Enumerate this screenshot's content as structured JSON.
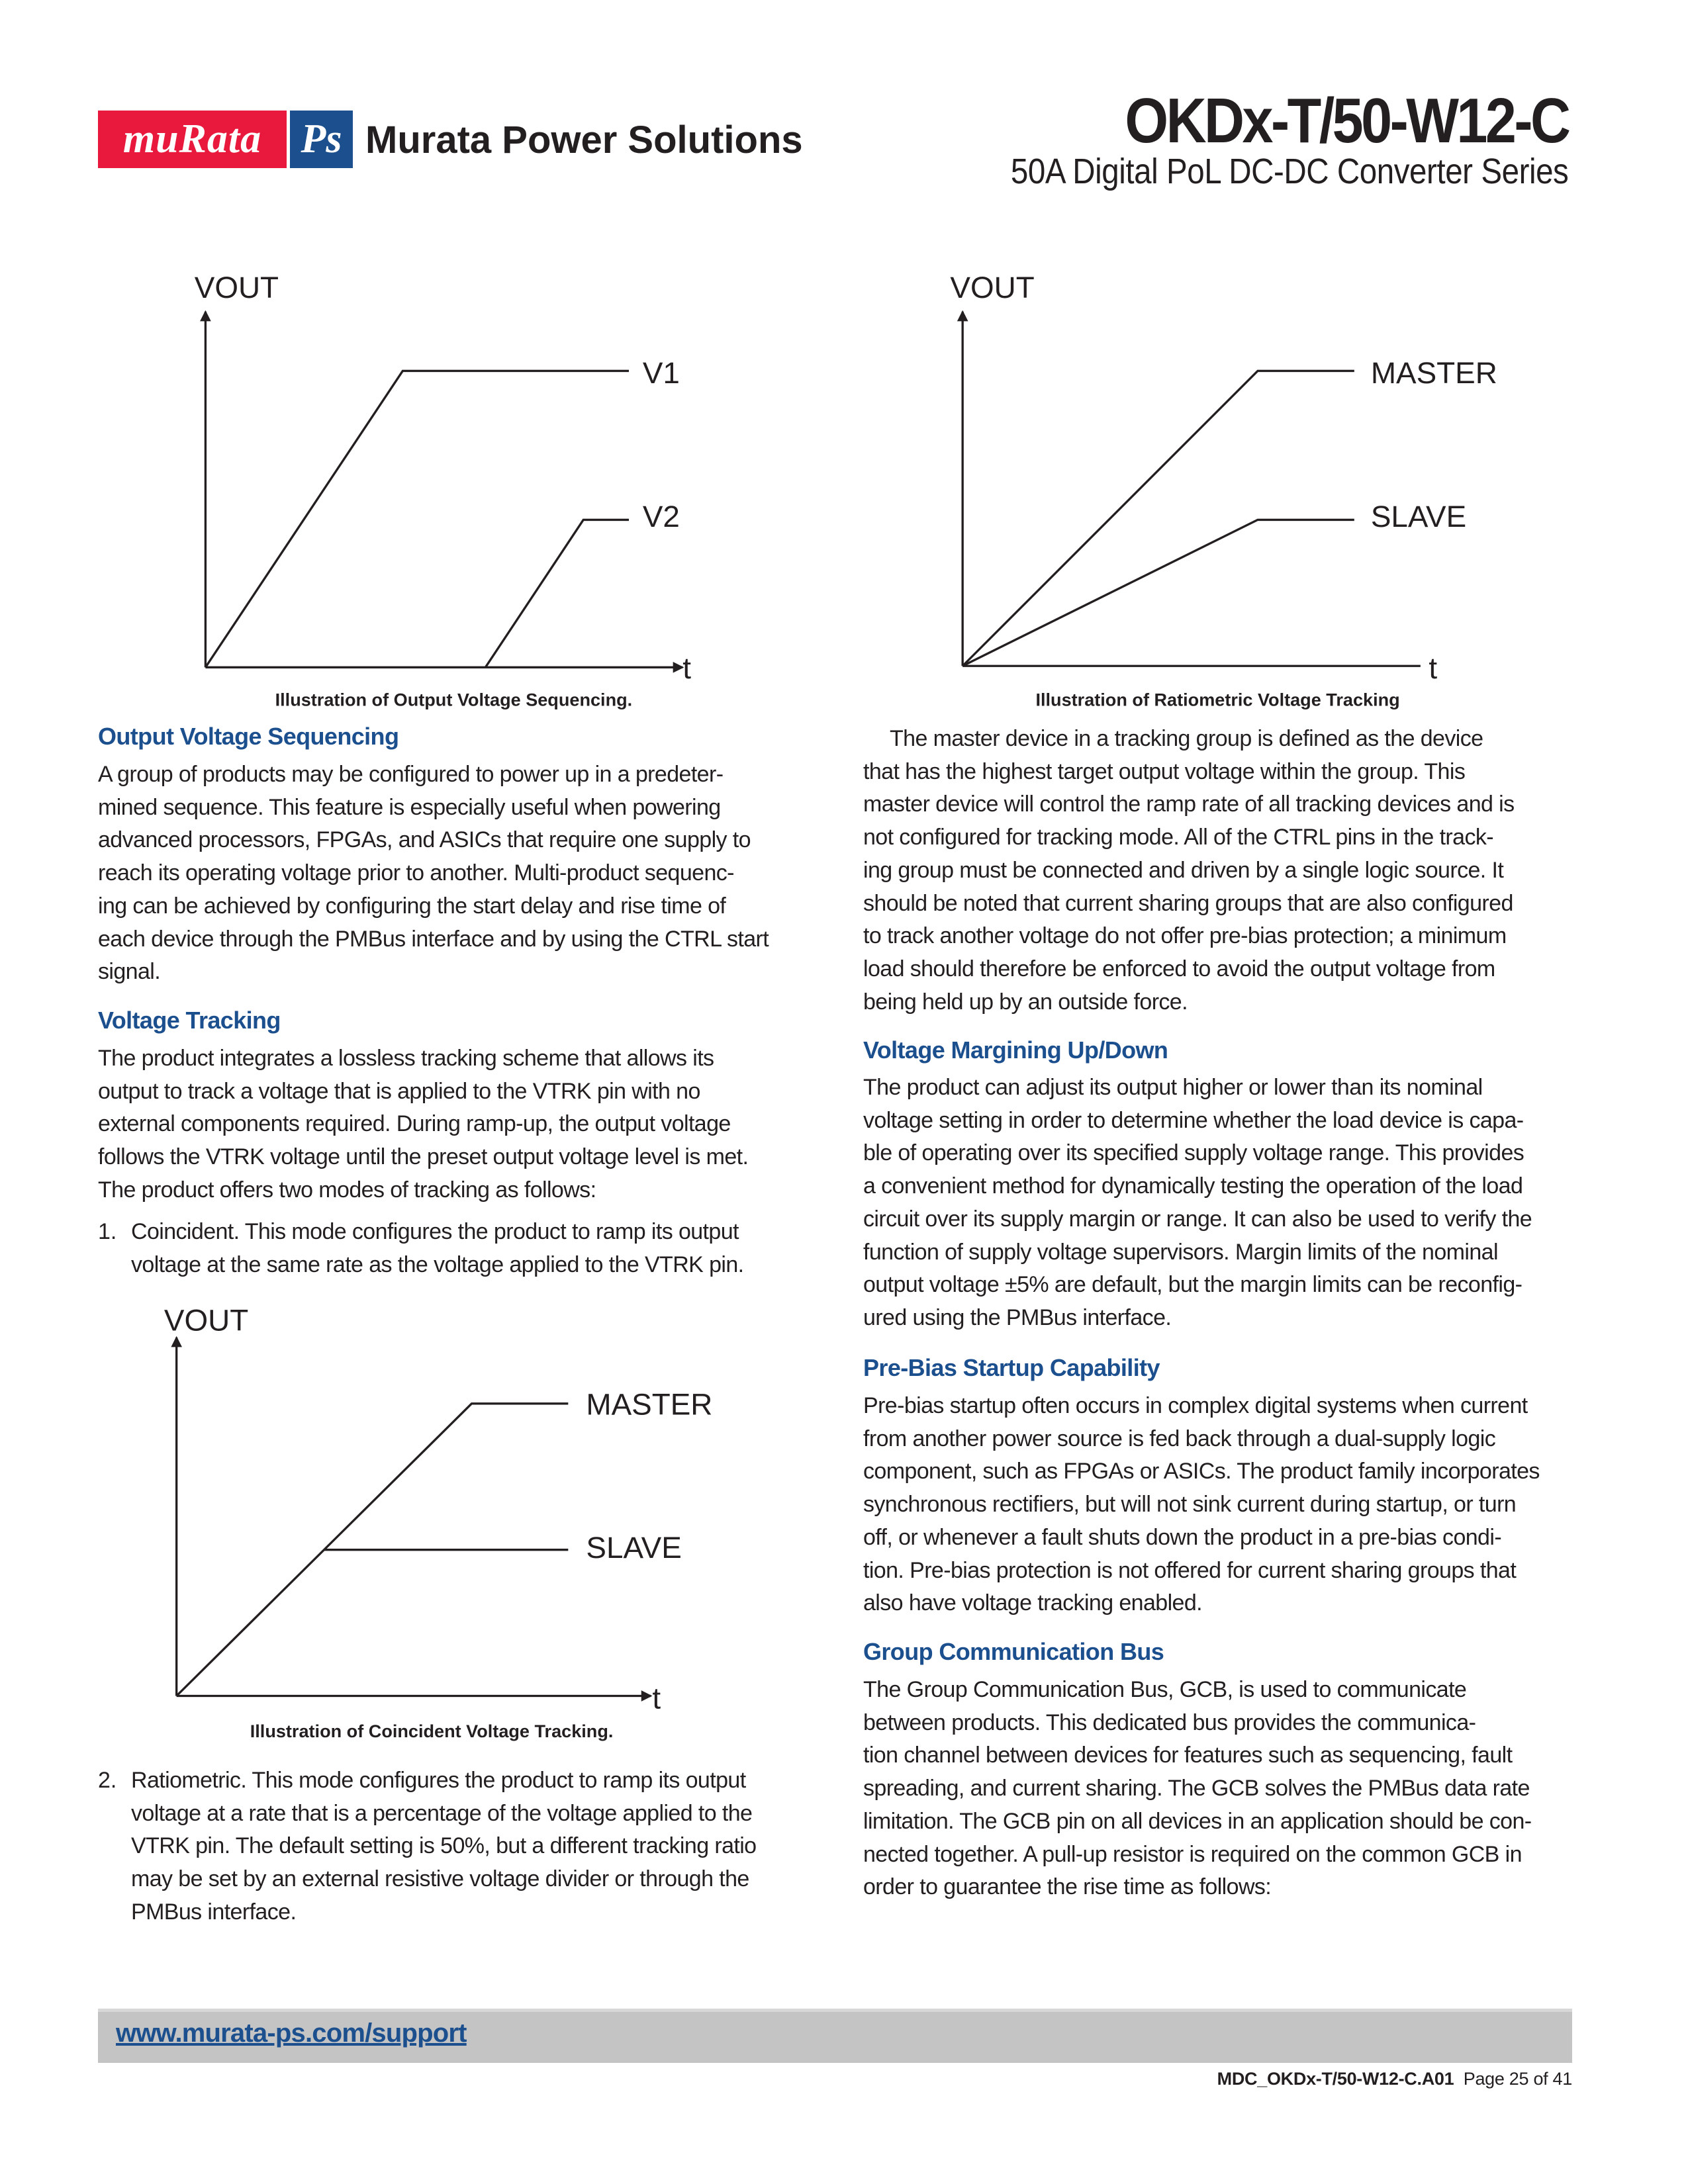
{
  "header": {
    "logo_text": "muRata",
    "logo_ps": "Ps",
    "brand": "Murata Power Solutions",
    "title": "OKDx-T/50-W12-C",
    "subtitle": "50A Digital PoL DC-DC Converter Series"
  },
  "colors": {
    "brand_red": "#e8193c",
    "brand_blue": "#1c4f8e",
    "footer_bar": "#c4c4c4"
  },
  "diagrams": {
    "sequencing": {
      "y_label": "VOUT",
      "x_label": "t",
      "line1": "V1",
      "line2": "V2",
      "caption": "Illustration of Output Voltage Sequencing."
    },
    "ratiometric": {
      "y_label": "VOUT",
      "x_label": "t",
      "line1": "MASTER",
      "line2": "SLAVE",
      "caption": "Illustration of Ratiometric Voltage Tracking"
    },
    "coincident": {
      "y_label": "VOUT",
      "x_label": "t",
      "line1": "MASTER",
      "line2": "SLAVE",
      "caption": "Illustration of Coincident Voltage Tracking."
    }
  },
  "left": {
    "seq_heading": "Output Voltage Sequencing",
    "seq_lines": [
      "A group of products may be configured to power up in a predeter-",
      "mined sequence. This feature is especially useful when powering",
      "advanced processors, FPGAs, and ASICs that require one supply to",
      "reach its operating voltage prior to another. Multi-product sequenc-",
      "ing can be achieved by configuring the start delay and rise time of",
      "each device through the PMBus interface and by using the CTRL start",
      "signal."
    ],
    "track_heading": "Voltage Tracking",
    "track_lines": [
      "The product integrates a lossless tracking scheme that allows its",
      "output to track a voltage that is applied to the VTRK pin with no",
      "external components required. During ramp-up, the output voltage",
      "follows the VTRK voltage until the preset output voltage level is met.",
      "The product offers two modes of tracking as follows:"
    ],
    "item1_num": "1.",
    "item1_lines": [
      "Coincident. This mode configures the product to ramp its output",
      "voltage at the same rate as the voltage applied to the VTRK pin."
    ],
    "item2_num": "2.",
    "item2_lines": [
      "Ratiometric. This mode configures the product to ramp its output",
      "voltage at a rate that is a percentage of the voltage applied to the",
      "VTRK pin. The default setting is 50%, but a different tracking ratio",
      "may be set by an external resistive voltage divider or through the",
      "PMBus interface."
    ]
  },
  "right": {
    "master_lines": [
      "The master device in a tracking group is defined as the device",
      "that has the highest target output voltage within the group. This",
      "master device will control the ramp rate of all tracking devices and is",
      "not configured for tracking mode. All of the CTRL pins in the track-",
      "ing group must be connected and driven by a single logic source. It",
      "should be noted that current sharing groups that are also configured",
      "to track another voltage do not offer pre-bias protection; a minimum",
      "load should therefore be enforced to avoid the output voltage from",
      "being held up by an outside force."
    ],
    "margin_heading": "Voltage Margining Up/Down",
    "margin_lines": [
      "The product can adjust its output higher or lower than its nominal",
      "voltage setting in order to determine whether the load device is capa-",
      "ble of operating over its specified supply voltage range. This provides",
      "a convenient method for dynamically testing the operation of the load",
      "circuit over its supply margin or range. It can also be used to verify the",
      "function of supply voltage supervisors. Margin limits of the nominal",
      "output voltage ±5% are default, but the margin limits can be reconfig-",
      "ured using the PMBus interface."
    ],
    "prebias_heading": "Pre-Bias Startup Capability",
    "prebias_lines": [
      "Pre-bias startup often occurs in complex digital systems when current",
      "from another power source is fed back through a dual-supply logic",
      "component, such as FPGAs or ASICs. The product family incorporates",
      "synchronous rectifiers, but will not sink current during startup, or turn",
      "off, or whenever a fault shuts down the product in a pre-bias condi-",
      "tion. Pre-bias protection is not offered for current sharing groups that",
      "also have voltage tracking enabled."
    ],
    "gcb_heading": "Group Communication Bus",
    "gcb_lines": [
      "The Group Communication Bus, GCB, is used to communicate",
      "between products. This dedicated bus provides the communica-",
      "tion channel between devices for features such as sequencing, fault",
      "spreading, and current sharing. The GCB solves the PMBus data rate",
      "limitation. The GCB pin on all devices in an application should be con-",
      "nected together. A pull-up resistor is required on the common GCB in",
      "order to guarantee the rise time as follows:"
    ]
  },
  "footer": {
    "link": "www.murata-ps.com/support",
    "doc_id": "MDC_OKDx-T/50-W12-C.A01",
    "page": "Page 25 of 41"
  }
}
